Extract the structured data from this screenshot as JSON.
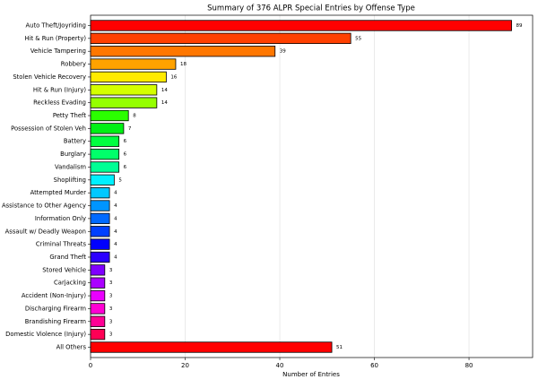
{
  "chart_data": {
    "type": "bar",
    "orientation": "horizontal",
    "title": "Summary of 376 ALPR Special Entries by Offense Type",
    "xlabel": "Number of Entries",
    "categories": [
      "Auto Theft/Joyriding",
      "Hit & Run (Property)",
      "Vehicle Tampering",
      "Robbery",
      "Stolen Vehicle Recovery",
      "Hit & Run (Injury)",
      "Reckless Evading",
      "Petty Theft",
      "Possession of Stolen Veh",
      "Battery",
      "Burglary",
      "Vandalism",
      "Shoplifting",
      "Attempted Murder",
      "Assistance to Other Agency",
      "Information Only",
      "Assault w/ Deadly Weapon",
      "Criminal Threats",
      "Grand Theft",
      "Stored Vehicle",
      "Carjacking",
      "Accident (Non-Injury)",
      "Discharging Firearm",
      "Brandishing Firearm",
      "Domestic Violence (Injury)",
      "All Others"
    ],
    "values": [
      89,
      55,
      39,
      18,
      16,
      14,
      14,
      8,
      7,
      6,
      6,
      6,
      5,
      4,
      4,
      4,
      4,
      4,
      4,
      3,
      3,
      3,
      3,
      3,
      3,
      51
    ],
    "colors": [
      "#ff0000",
      "#ff4000",
      "#ff7700",
      "#ffa200",
      "#ffea00",
      "#d4ff00",
      "#95ff00",
      "#2bff00",
      "#00f015",
      "#00ff40",
      "#00ff6a",
      "#00ff95",
      "#00f0ff",
      "#00c8ff",
      "#0095ff",
      "#006aff",
      "#0040ff",
      "#0000ff",
      "#2b00ff",
      "#8000ff",
      "#aa00ff",
      "#ea00ff",
      "#ff00d4",
      "#ff0095",
      "#ff0055",
      "#ff0000"
    ],
    "xlim": [
      0,
      93.45
    ],
    "xticks": [
      0,
      20,
      40,
      60,
      80
    ],
    "grid": true
  }
}
